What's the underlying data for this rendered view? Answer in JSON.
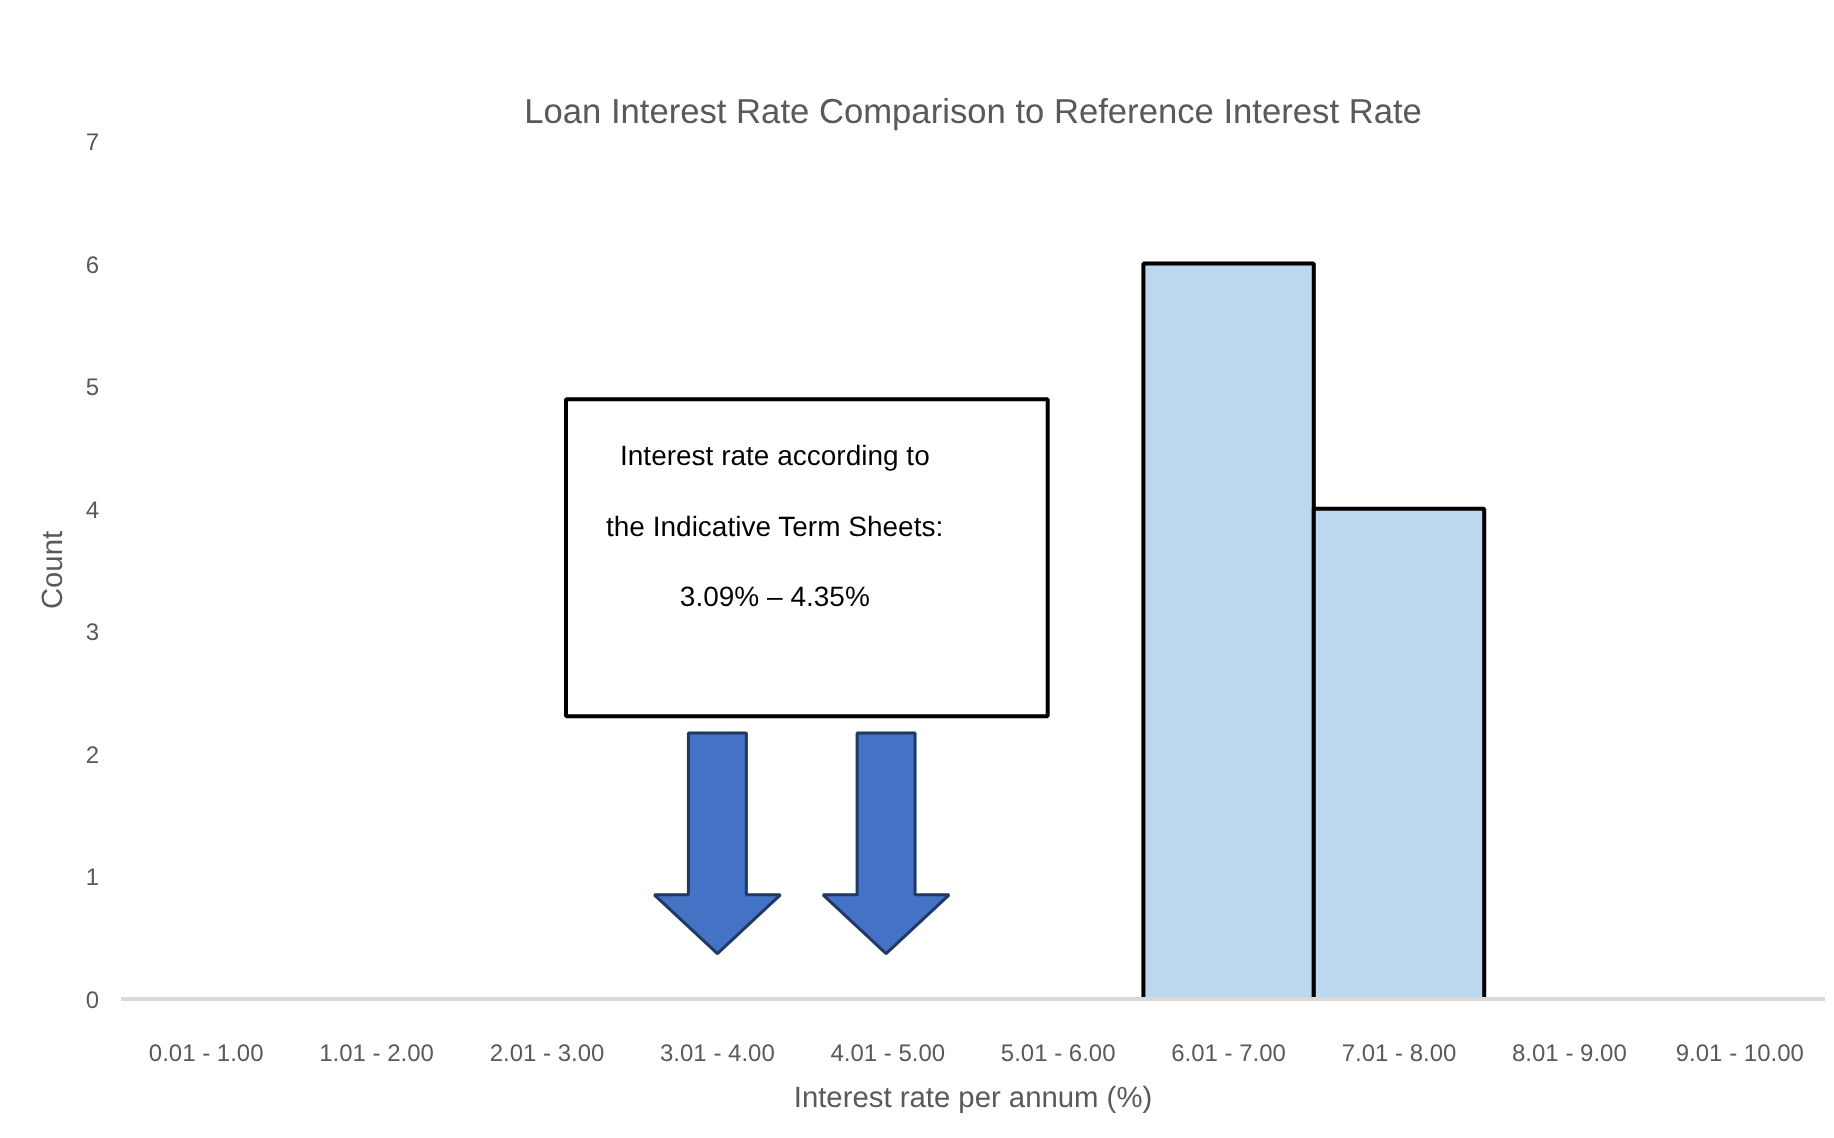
{
  "chart_data": {
    "type": "bar",
    "title": "Loan Interest Rate Comparison to Reference Interest Rate",
    "xlabel": "Interest rate per annum (%)",
    "ylabel": "Count",
    "categories": [
      "0.01 - 1.00",
      "1.01 - 2.00",
      "2.01 - 3.00",
      "3.01 - 4.00",
      "4.01 - 5.00",
      "5.01 - 6.00",
      "6.01 - 7.00",
      "7.01 - 8.00",
      "8.01 - 9.00",
      "9.01 - 10.00"
    ],
    "values": [
      0,
      0,
      0,
      0,
      0,
      0,
      6,
      4,
      0,
      0
    ],
    "color": "#bdd7ee",
    "ylim": [
      0,
      7
    ],
    "yticks": [
      0,
      1,
      2,
      3,
      4,
      5,
      6,
      7
    ],
    "grid": false,
    "annotations": [
      "Interest rate according to\nthe Indicative Term Sheets:\n3.09% – 4.35%"
    ]
  }
}
